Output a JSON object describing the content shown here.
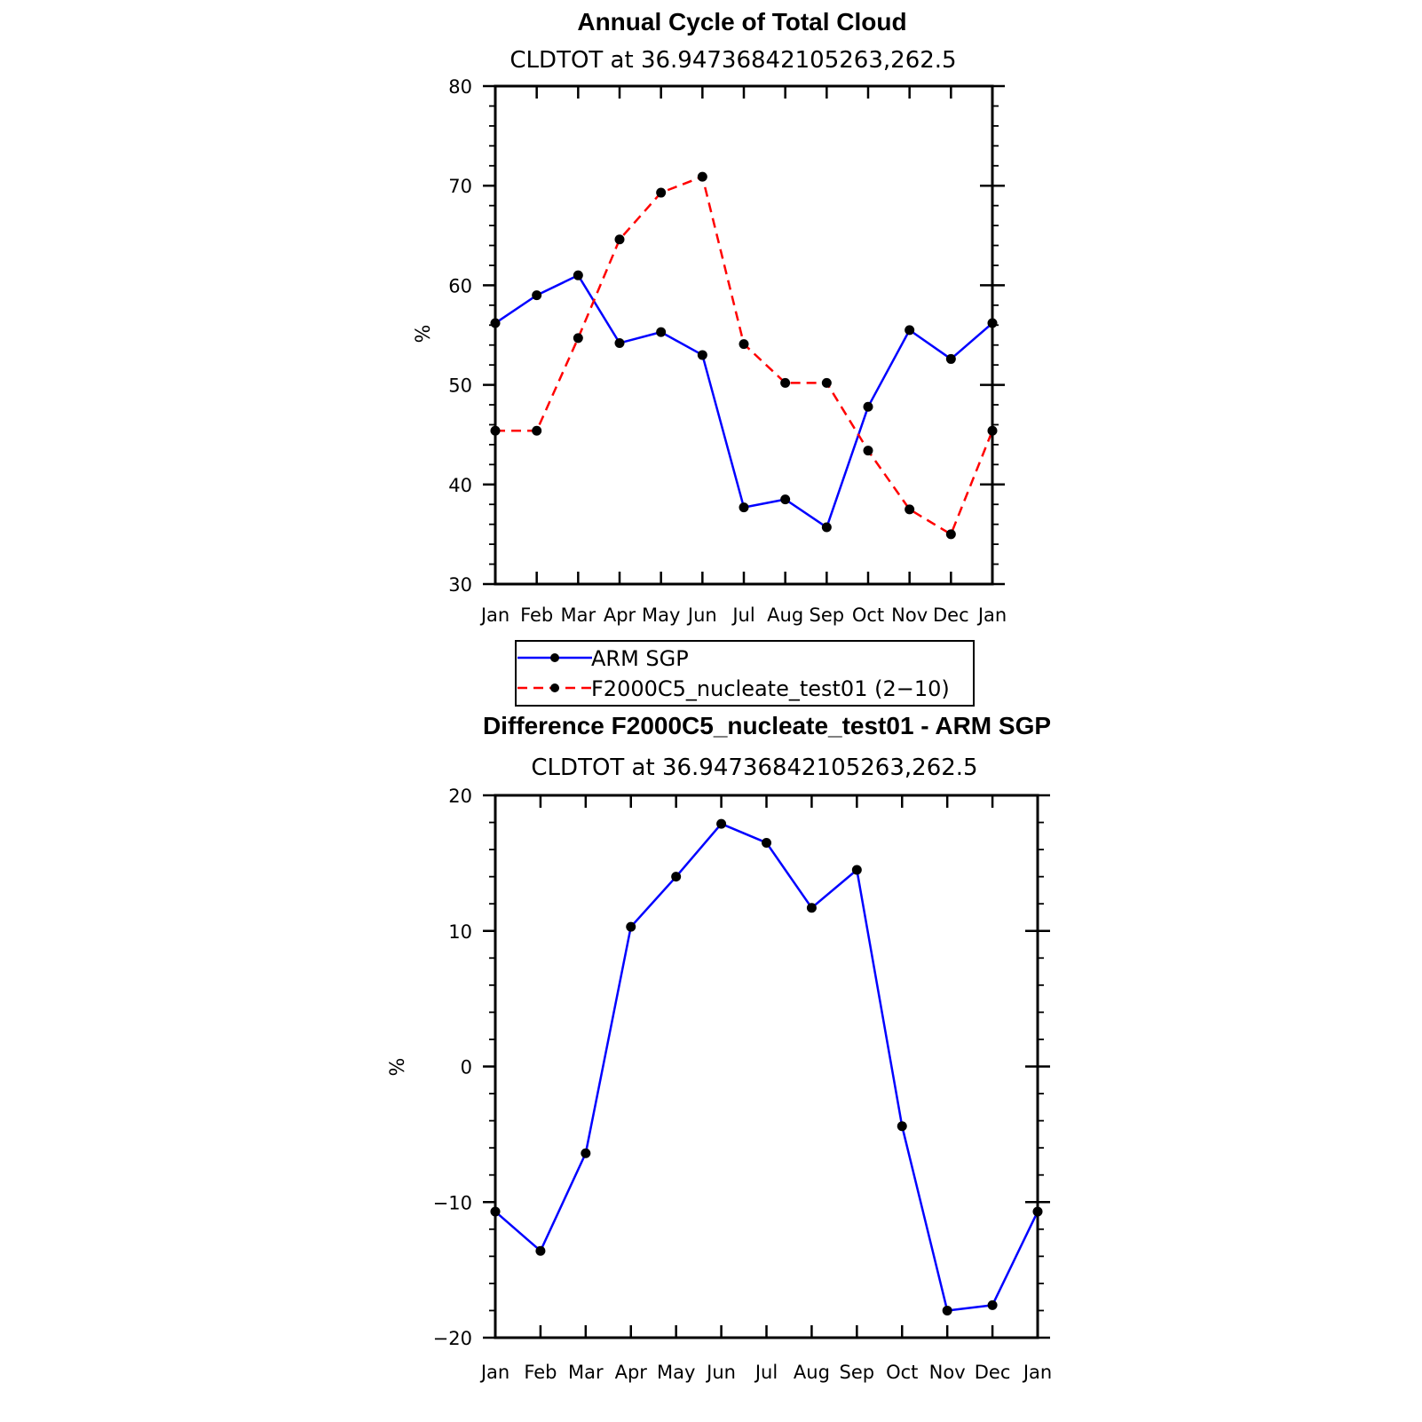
{
  "chart_data": [
    {
      "type": "line",
      "title": "Annual Cycle of Total Cloud",
      "subtitle": "CLDTOT at 36.94736842105263,262.5",
      "ylabel": "%",
      "xlabel": "",
      "categories": [
        "Jan",
        "Feb",
        "Mar",
        "Apr",
        "May",
        "Jun",
        "Jul",
        "Aug",
        "Sep",
        "Oct",
        "Nov",
        "Dec",
        "Jan"
      ],
      "ylim": [
        30,
        80
      ],
      "yticks": [
        30,
        40,
        50,
        60,
        70,
        80
      ],
      "grid": false,
      "legend_position": "bottom",
      "series": [
        {
          "name": "ARM SGP",
          "color": "#0000ff",
          "dash": "solid",
          "values": [
            56.2,
            59.0,
            61.0,
            54.2,
            55.3,
            53.0,
            37.7,
            38.5,
            35.7,
            47.8,
            55.5,
            52.6,
            56.2
          ]
        },
        {
          "name": "F2000C5_nucleate_test01 (2−10)",
          "color": "#ff0000",
          "dash": "dashed",
          "values": [
            45.4,
            45.4,
            54.7,
            64.6,
            69.3,
            70.9,
            54.1,
            50.2,
            50.2,
            43.4,
            37.5,
            35.0,
            45.4
          ]
        }
      ]
    },
    {
      "type": "line",
      "title": "Difference F2000C5_nucleate_test01 - ARM SGP",
      "subtitle": "CLDTOT at 36.94736842105263,262.5",
      "ylabel": "%",
      "xlabel": "",
      "categories": [
        "Jan",
        "Feb",
        "Mar",
        "Apr",
        "May",
        "Jun",
        "Jul",
        "Aug",
        "Sep",
        "Oct",
        "Nov",
        "Dec",
        "Jan"
      ],
      "ylim": [
        -20,
        20
      ],
      "yticks": [
        -20,
        -10,
        0,
        10,
        20
      ],
      "ytick_labels": [
        "−20",
        "−10",
        "0",
        "10",
        "20"
      ],
      "grid": false,
      "series": [
        {
          "color": "#0000ff",
          "dash": "solid",
          "values": [
            -10.7,
            -13.6,
            -6.4,
            10.3,
            14.0,
            17.9,
            16.5,
            11.7,
            14.5,
            -4.4,
            -18.0,
            -17.6,
            -10.7
          ]
        }
      ]
    }
  ],
  "colors": {
    "axis": "#000000",
    "marker": "#000000"
  }
}
